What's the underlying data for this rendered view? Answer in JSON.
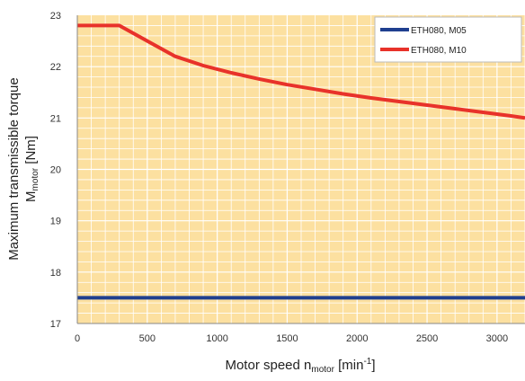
{
  "chart_data": {
    "type": "line",
    "xlabel": {
      "main": "Motor speed n",
      "subscript": "motor",
      "unit_prefix": " [min",
      "unit_superscript": "-1",
      "unit_suffix": "]"
    },
    "ylabel": {
      "line1": "Maximum transmissible torque",
      "line2_main": "M",
      "line2_subscript": "motor",
      "line2_suffix": " [Nm]"
    },
    "xlim": [
      0,
      3200
    ],
    "ylim": [
      17,
      23
    ],
    "xticks": [
      0,
      500,
      1000,
      1500,
      2000,
      2500,
      3000
    ],
    "yticks": [
      17,
      18,
      19,
      20,
      21,
      22,
      23
    ],
    "grid": true,
    "legend_position": "top-right",
    "colors": {
      "plot_background": "#fce0a0",
      "grid": "#ffffff"
    },
    "series": [
      {
        "name": "ETH080, M05",
        "color": "#1f3f8f",
        "x": [
          0,
          3200
        ],
        "y": [
          17.5,
          17.5
        ]
      },
      {
        "name": "ETH080, M10",
        "color": "#e8322a",
        "x": [
          0,
          300,
          500,
          700,
          900,
          1100,
          1300,
          1500,
          1700,
          1900,
          2100,
          2300,
          2500,
          2700,
          2900,
          3100,
          3200
        ],
        "y": [
          22.8,
          22.8,
          22.5,
          22.2,
          22.02,
          21.88,
          21.76,
          21.65,
          21.56,
          21.47,
          21.39,
          21.32,
          21.25,
          21.18,
          21.11,
          21.04,
          21.0
        ]
      }
    ]
  }
}
